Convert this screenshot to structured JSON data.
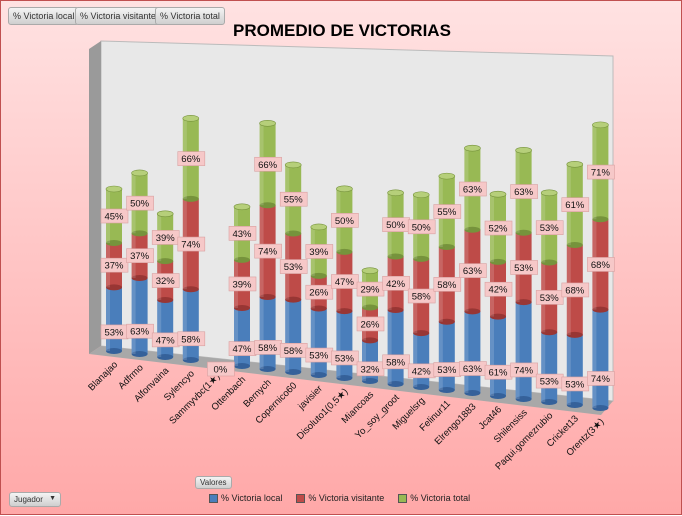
{
  "field_buttons": [
    "% Victoria local",
    "% Victoria visitante",
    "% Victoria total"
  ],
  "values_button": "Valores",
  "row_filter": {
    "label": "Jugador"
  },
  "colors": {
    "local": "#4a7ebb",
    "visitante": "#be4b48",
    "total": "#98b954"
  },
  "chart_data": {
    "type": "bar",
    "subtype": "3d-stacked-cylinder",
    "title": "PROMEDIO DE VICTORIAS",
    "legend_position": "bottom",
    "categories": [
      "Blanajao",
      "Adfrmo",
      "Alfonvaina",
      "Sylencyo",
      "Sammyvbc(1★)",
      "Ottenbach",
      "Bernych",
      "Copernico60",
      "javisier",
      "Disoluto1(0,5★)",
      "Miancoas",
      "Yo_soy_groot",
      "Miguelsrg",
      "Felinur11",
      "Elrengo1883",
      "Jcat46",
      "Shilensiss",
      "Paqui.gomezrubio",
      "Cricket13",
      "Orentz(3★)"
    ],
    "series": [
      {
        "name": "% Victoria local",
        "values": [
          53,
          63,
          47,
          58,
          0,
          47,
          58,
          58,
          53,
          53,
          32,
          58,
          42,
          53,
          63,
          61,
          74,
          53,
          53,
          74
        ]
      },
      {
        "name": "% Victoria visitante",
        "values": [
          37,
          37,
          32,
          74,
          0,
          39,
          74,
          53,
          26,
          47,
          26,
          42,
          58,
          58,
          63,
          42,
          53,
          53,
          68,
          68
        ]
      },
      {
        "name": "% Victoria total",
        "values": [
          45,
          50,
          39,
          66,
          0,
          43,
          66,
          55,
          39,
          50,
          29,
          50,
          50,
          55,
          63,
          52,
          63,
          53,
          61,
          71
        ]
      }
    ],
    "zero_label": "0%"
  }
}
